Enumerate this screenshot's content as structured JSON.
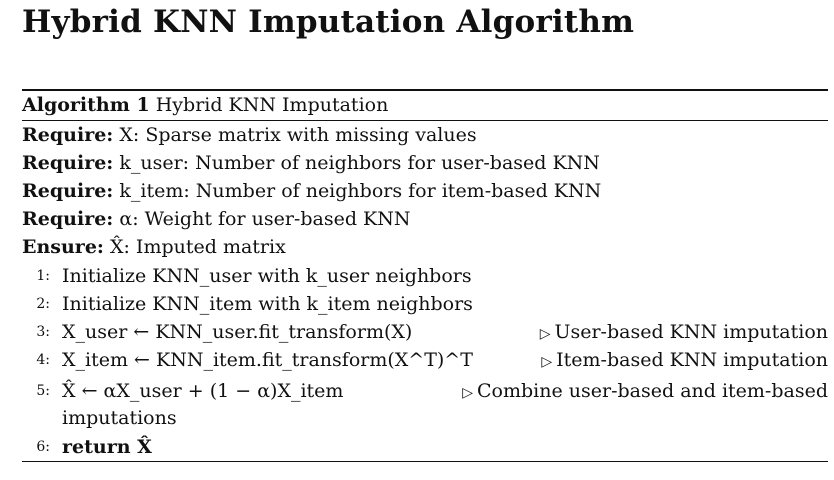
{
  "title": "Hybrid KNN Imputation Algorithm",
  "caption": {
    "label": "Algorithm 1",
    "text": "Hybrid KNN Imputation"
  },
  "requires": [
    {
      "keyword": "Require:",
      "text": "X: Sparse matrix with missing values"
    },
    {
      "keyword": "Require:",
      "text": "k_user: Number of neighbors for user-based KNN"
    },
    {
      "keyword": "Require:",
      "text": "k_item: Number of neighbors for item-based KNN"
    },
    {
      "keyword": "Require:",
      "text": "α: Weight for user-based KNN"
    }
  ],
  "ensure": {
    "keyword": "Ensure:",
    "text": "X̂: Imputed matrix"
  },
  "steps": [
    {
      "num": "1:",
      "text": "Initialize KNN_user with k_user neighbors",
      "comment": ""
    },
    {
      "num": "2:",
      "text": "Initialize KNN_item with k_item neighbors",
      "comment": ""
    },
    {
      "num": "3:",
      "text": "X_user ← KNN_user.fit_transform(X)",
      "comment": "User-based KNN imputation"
    },
    {
      "num": "4:",
      "text": "X_item ← KNN_item.fit_transform(X^T)^T",
      "comment": "Item-based KNN imputation"
    },
    {
      "num": "5:",
      "text": "X̂ ← αX_user + (1 − α)X_item",
      "comment": "Combine user-based and item-based",
      "continuation": "imputations"
    },
    {
      "num": "6:",
      "text": "return X̂",
      "comment": ""
    }
  ],
  "comment_marker": "▷"
}
